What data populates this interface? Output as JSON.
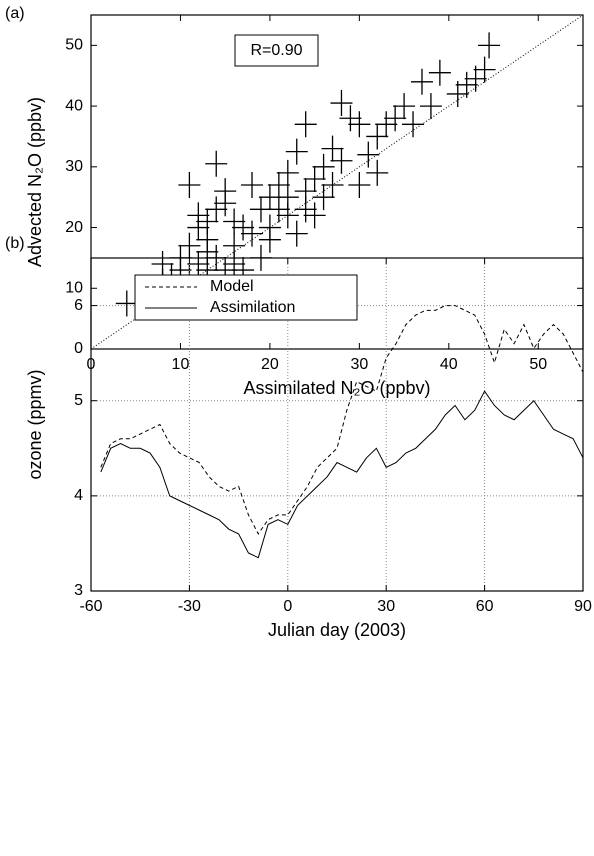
{
  "chart_data": [
    {
      "type": "scatter",
      "panel_label": "(a)",
      "annotation": "R=0.90",
      "x_label": "Assimilated N₂O (ppbv)",
      "y_label": "Advected N₂O (ppbv)",
      "xlim": [
        0,
        55
      ],
      "ylim": [
        0,
        55
      ],
      "xticks": [
        0,
        10,
        20,
        30,
        40,
        50
      ],
      "yticks": [
        0,
        10,
        20,
        30,
        40,
        50
      ],
      "color": "#000000",
      "x": [
        4,
        8,
        8,
        9,
        10,
        10,
        11,
        11,
        12,
        12,
        12,
        11,
        13,
        13,
        13,
        13,
        14,
        14,
        14,
        15,
        15,
        16,
        16,
        17,
        18,
        18,
        19,
        19,
        20,
        20,
        21,
        21,
        22,
        22,
        23,
        23,
        24,
        24,
        24,
        25,
        26,
        26,
        27,
        27,
        28,
        28,
        29,
        30,
        30,
        31,
        32,
        32,
        33,
        34,
        35,
        36,
        37,
        38,
        39,
        41,
        42,
        43,
        44,
        44.5,
        15,
        17,
        20,
        25,
        22,
        16
      ],
      "y": [
        7.5,
        11,
        14,
        12,
        13,
        15,
        12,
        17,
        14,
        20,
        22,
        27,
        13,
        16,
        18,
        21,
        30.5,
        15,
        23,
        24,
        13,
        14,
        21,
        13,
        27,
        19,
        23,
        15,
        20,
        25,
        23,
        27,
        22,
        25,
        19,
        32.5,
        37,
        26,
        23,
        28,
        25,
        30,
        27,
        33,
        31,
        40.5,
        38,
        37,
        27,
        32,
        29,
        35,
        37,
        38,
        40,
        37,
        44,
        40,
        45.5,
        42,
        43.5,
        44.5,
        46,
        50,
        26,
        20,
        18,
        22,
        29,
        17
      ]
    },
    {
      "type": "line",
      "panel_label": "(b)",
      "x_label": "Julian day (2003)",
      "y_label": "ozone (ppmv)",
      "xlim": [
        -60,
        90
      ],
      "ylim": [
        3,
        6.5
      ],
      "xticks": [
        -60,
        -30,
        0,
        30,
        60,
        90
      ],
      "yticks": [
        3,
        4,
        5,
        6
      ],
      "grid": true,
      "legend": "upper left",
      "x": [
        -57,
        -54,
        -51,
        -48,
        -45,
        -42,
        -39,
        -36,
        -33,
        -30,
        -27,
        -24,
        -21,
        -18,
        -15,
        -12,
        -9,
        -6,
        -3,
        0,
        3,
        6,
        9,
        12,
        15,
        18,
        21,
        24,
        27,
        30,
        33,
        36,
        39,
        42,
        45,
        48,
        51,
        54,
        57,
        60,
        63,
        66,
        69,
        72,
        75,
        78,
        81,
        84,
        87,
        90
      ],
      "series": [
        {
          "name": "Model",
          "color": "#000000",
          "dash": "dashed",
          "values": [
            4.3,
            4.55,
            4.6,
            4.6,
            4.65,
            4.7,
            4.75,
            4.55,
            4.45,
            4.4,
            4.35,
            4.2,
            4.1,
            4.05,
            4.1,
            3.8,
            3.6,
            3.75,
            3.8,
            3.8,
            3.95,
            4.1,
            4.3,
            4.4,
            4.5,
            4.9,
            5.2,
            5.15,
            5.1,
            5.45,
            5.6,
            5.8,
            5.9,
            5.95,
            5.95,
            6.0,
            6.0,
            5.95,
            5.9,
            5.7,
            5.4,
            5.75,
            5.6,
            5.8,
            5.55,
            5.7,
            5.8,
            5.7,
            5.5,
            5.3
          ]
        },
        {
          "name": "Assimilation",
          "color": "#000000",
          "dash": "solid",
          "values": [
            4.25,
            4.5,
            4.55,
            4.5,
            4.5,
            4.45,
            4.3,
            4.0,
            3.95,
            3.9,
            3.85,
            3.8,
            3.75,
            3.65,
            3.6,
            3.4,
            3.35,
            3.7,
            3.75,
            3.7,
            3.9,
            4.0,
            4.1,
            4.2,
            4.35,
            4.3,
            4.25,
            4.4,
            4.5,
            4.3,
            4.35,
            4.45,
            4.5,
            4.6,
            4.7,
            4.85,
            4.95,
            4.8,
            4.9,
            5.1,
            4.95,
            4.85,
            4.8,
            4.9,
            5.0,
            4.85,
            4.7,
            4.65,
            4.6,
            4.4
          ]
        }
      ]
    }
  ]
}
